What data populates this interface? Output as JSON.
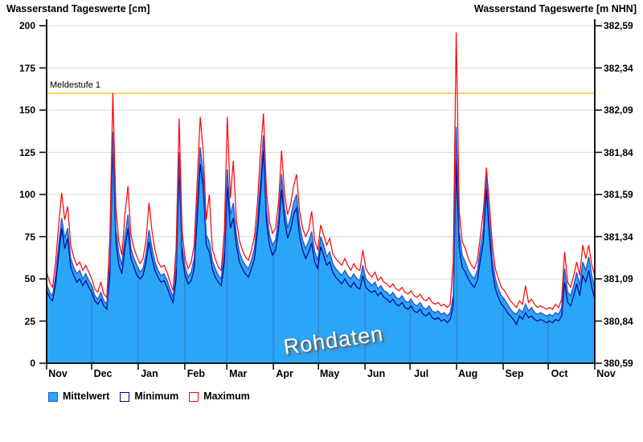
{
  "colors": {
    "background": "#ffffff",
    "axis": "#000000",
    "grid_horizontal": "#d9d9d9",
    "grid_month_vertical": "#3879b8",
    "threshold_line": "#ffc435",
    "area_fill": "#2aa5f7",
    "mean_line": "#2b57d0",
    "min_line": "#000090",
    "max_line": "#ff0000",
    "watermark_text": "#ffffff"
  },
  "chart_data": {
    "type": "area",
    "title": "Wasserstand Tageswerte",
    "ylabel_left": "Wasserstand Tageswerte [cm]",
    "ylabel_right": "Wasserstand Tageswerte [m NHN]",
    "ylim_left_cm": [
      0,
      200
    ],
    "y_ticks_left_cm": [
      200,
      175,
      150,
      125,
      100,
      75,
      50,
      25,
      0
    ],
    "y_ticks_right_mNHN": [
      "382,59",
      "382,34",
      "382,09",
      "381,84",
      "381,59",
      "381,34",
      "381,09",
      "380,84",
      "380,59"
    ],
    "x_month_labels": [
      "Nov",
      "Dec",
      "Jan",
      "Feb",
      "Mar",
      "Apr",
      "May",
      "Jun",
      "Jul",
      "Aug",
      "Sep",
      "Oct",
      "Nov"
    ],
    "x_month_start_days": [
      0,
      30,
      61,
      92,
      120,
      151,
      181,
      212,
      242,
      273,
      304,
      334,
      365
    ],
    "days_total": 365,
    "sample_step_days": 2,
    "grid": true,
    "legend_position": "bottom-left",
    "watermark": "Rohdaten",
    "threshold_line": {
      "label": "Meldestufe 1",
      "value_cm": 160
    },
    "series": [
      {
        "name": "Mittelwert",
        "type": "area",
        "fill_color": "#2aa5f7",
        "line_color": "#2b57d0",
        "values_cm": [
          47,
          42,
          40,
          52,
          70,
          86,
          74,
          80,
          62,
          57,
          53,
          55,
          50,
          53,
          49,
          46,
          40,
          38,
          42,
          37,
          35,
          60,
          137,
          80,
          65,
          58,
          75,
          88,
          68,
          62,
          58,
          54,
          56,
          65,
          79,
          68,
          60,
          55,
          52,
          53,
          49,
          44,
          39,
          58,
          125,
          70,
          57,
          51,
          54,
          62,
          95,
          128,
          112,
          76,
          72,
          61,
          56,
          52,
          50,
          68,
          115,
          88,
          95,
          76,
          66,
          61,
          58,
          56,
          61,
          68,
          85,
          110,
          135,
          92,
          76,
          70,
          73,
          86,
          112,
          92,
          80,
          86,
          95,
          100,
          82,
          73,
          68,
          72,
          78,
          66,
          61,
          75,
          70,
          63,
          66,
          59,
          56,
          54,
          52,
          55,
          52,
          50,
          53,
          50,
          49,
          58,
          50,
          48,
          46,
          48,
          44,
          46,
          43,
          42,
          40,
          42,
          39,
          38,
          40,
          37,
          36,
          38,
          35,
          34,
          36,
          33,
          32,
          34,
          31,
          30,
          31,
          29,
          30,
          28,
          30,
          40,
          140,
          78,
          64,
          60,
          55,
          52,
          50,
          55,
          68,
          80,
          112,
          85,
          62,
          50,
          44,
          40,
          38,
          35,
          32,
          30,
          29,
          32,
          30,
          35,
          31,
          33,
          30,
          29,
          30,
          29,
          28,
          29,
          28,
          30,
          29,
          33,
          56,
          42,
          40,
          46,
          54,
          46,
          60,
          55,
          63,
          52,
          44
        ]
      },
      {
        "name": "Minimum",
        "type": "line",
        "line_color": "#000090",
        "values_cm": [
          43,
          39,
          37,
          47,
          64,
          80,
          68,
          74,
          57,
          52,
          48,
          50,
          46,
          49,
          45,
          42,
          37,
          35,
          38,
          34,
          32,
          52,
          128,
          72,
          58,
          53,
          68,
          80,
          62,
          57,
          52,
          50,
          52,
          60,
          72,
          62,
          55,
          51,
          48,
          49,
          45,
          40,
          36,
          50,
          115,
          63,
          52,
          47,
          49,
          56,
          86,
          118,
          104,
          70,
          66,
          56,
          51,
          48,
          46,
          60,
          105,
          80,
          86,
          70,
          60,
          56,
          53,
          51,
          56,
          62,
          78,
          100,
          126,
          84,
          70,
          64,
          67,
          79,
          103,
          85,
          74,
          79,
          88,
          92,
          75,
          67,
          62,
          66,
          71,
          60,
          56,
          69,
          64,
          58,
          60,
          54,
          51,
          49,
          47,
          50,
          47,
          45,
          48,
          45,
          44,
          52,
          45,
          43,
          42,
          43,
          40,
          42,
          39,
          38,
          36,
          38,
          35,
          34,
          36,
          33,
          32,
          34,
          31,
          30,
          32,
          29,
          28,
          30,
          27,
          26,
          27,
          25,
          26,
          24,
          26,
          34,
          120,
          68,
          57,
          54,
          50,
          47,
          45,
          49,
          61,
          72,
          103,
          76,
          55,
          44,
          39,
          35,
          33,
          30,
          28,
          26,
          23,
          28,
          26,
          30,
          27,
          28,
          26,
          25,
          26,
          25,
          24,
          25,
          24,
          26,
          25,
          28,
          48,
          36,
          34,
          40,
          47,
          40,
          52,
          48,
          55,
          45,
          38
        ]
      },
      {
        "name": "Maximum",
        "type": "line",
        "line_color": "#ff0000",
        "values_cm": [
          54,
          48,
          45,
          60,
          82,
          101,
          85,
          93,
          70,
          63,
          58,
          60,
          55,
          58,
          54,
          50,
          44,
          42,
          48,
          41,
          39,
          75,
          160,
          92,
          72,
          64,
          88,
          105,
          76,
          68,
          63,
          59,
          62,
          73,
          95,
          78,
          67,
          60,
          57,
          58,
          54,
          48,
          43,
          68,
          145,
          78,
          62,
          56,
          60,
          70,
          108,
          146,
          125,
          85,
          100,
          68,
          62,
          57,
          55,
          78,
          146,
          98,
          120,
          85,
          73,
          67,
          63,
          61,
          67,
          75,
          95,
          125,
          148,
          102,
          84,
          77,
          80,
          95,
          126,
          101,
          88,
          94,
          105,
          112,
          90,
          80,
          75,
          79,
          90,
          73,
          67,
          82,
          76,
          70,
          74,
          65,
          62,
          60,
          58,
          62,
          58,
          55,
          59,
          56,
          55,
          67,
          56,
          53,
          51,
          54,
          49,
          51,
          48,
          47,
          45,
          47,
          44,
          43,
          45,
          42,
          41,
          43,
          40,
          39,
          41,
          38,
          37,
          39,
          36,
          35,
          36,
          34,
          35,
          33,
          35,
          60,
          196,
          90,
          72,
          68,
          62,
          58,
          56,
          61,
          75,
          90,
          116,
          95,
          70,
          56,
          50,
          45,
          43,
          40,
          37,
          35,
          33,
          37,
          35,
          46,
          36,
          38,
          35,
          33,
          34,
          33,
          32,
          33,
          32,
          35,
          33,
          38,
          66,
          48,
          45,
          52,
          60,
          52,
          70,
          62,
          70,
          58,
          52
        ]
      }
    ]
  }
}
